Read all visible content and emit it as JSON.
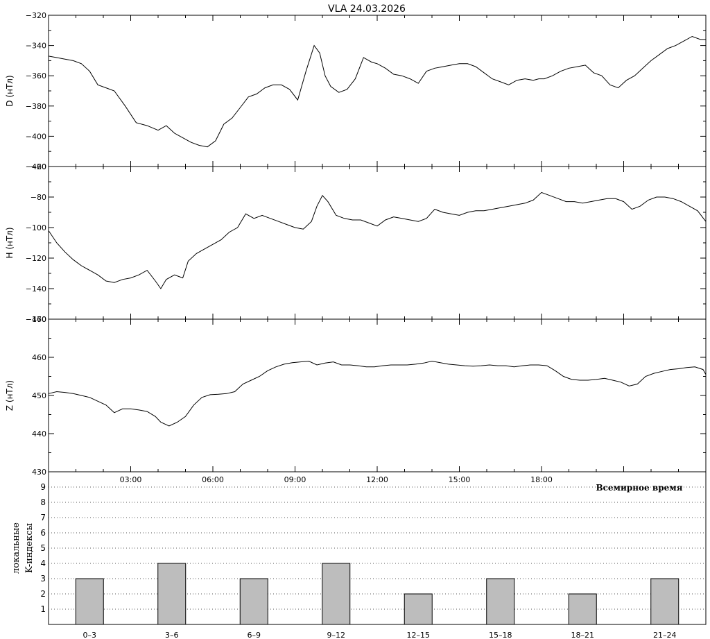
{
  "title": "VLA   24.03.2026",
  "x_tick_labels": [
    "03:00",
    "06:00",
    "09:00",
    "12:00",
    "15:00",
    "18:00"
  ],
  "x_axis_label": "Всемирное время",
  "k_side_label_1": "локальные",
  "k_side_label_2": "K-индексы",
  "colors": {
    "line": "#000000",
    "bar_fill": "#bdbdbd",
    "bar_stroke": "#000000",
    "frame": "#000000"
  },
  "chart_data": [
    {
      "type": "line",
      "ylabel": "D (нТл)",
      "ylim": [
        -420,
        -320
      ],
      "yticks": [
        -420,
        -400,
        -380,
        -360,
        -340,
        -320
      ],
      "xlim_hours": [
        0,
        24
      ],
      "x_hours": [
        0,
        0.3,
        0.6,
        0.9,
        1.2,
        1.5,
        1.8,
        2.1,
        2.4,
        2.8,
        3.2,
        3.6,
        4.0,
        4.3,
        4.6,
        4.9,
        5.2,
        5.5,
        5.8,
        6.1,
        6.4,
        6.7,
        7.0,
        7.3,
        7.6,
        7.9,
        8.2,
        8.5,
        8.8,
        9.1,
        9.4,
        9.7,
        9.9,
        10.1,
        10.3,
        10.6,
        10.9,
        11.2,
        11.5,
        11.8,
        12.0,
        12.3,
        12.6,
        12.9,
        13.2,
        13.5,
        13.8,
        14.1,
        14.4,
        14.7,
        15.0,
        15.3,
        15.6,
        15.9,
        16.2,
        16.5,
        16.8,
        17.1,
        17.4,
        17.7,
        17.9,
        18.1,
        18.4,
        18.7,
        19.0,
        19.3,
        19.6,
        19.9,
        20.2,
        20.5,
        20.8,
        21.1,
        21.4,
        21.7,
        22.0,
        22.3,
        22.6,
        22.9,
        23.2,
        23.5,
        23.8,
        24.0
      ],
      "values": [
        -347,
        -348,
        -349,
        -350,
        -352,
        -357,
        -366,
        -368,
        -370,
        -380,
        -391,
        -393,
        -396,
        -393,
        -398,
        -401,
        -404,
        -406,
        -407,
        -403,
        -392,
        -388,
        -381,
        -374,
        -372,
        -368,
        -366,
        -366,
        -369,
        -376,
        -357,
        -340,
        -345,
        -360,
        -367,
        -371,
        -369,
        -362,
        -348,
        -351,
        -352,
        -355,
        -359,
        -360,
        -362,
        -365,
        -357,
        -355,
        -354,
        -353,
        -352,
        -352,
        -354,
        -358,
        -362,
        -364,
        -366,
        -363,
        -362,
        -363,
        -362,
        -362,
        -360,
        -357,
        -355,
        -354,
        -353,
        -358,
        -360,
        -366,
        -368,
        -363,
        -360,
        -355,
        -350,
        -346,
        -342,
        -340,
        -337,
        -334,
        -336,
        -336
      ]
    },
    {
      "type": "line",
      "ylabel": "H (нТл)",
      "ylim": [
        -160,
        -60
      ],
      "yticks": [
        -160,
        -140,
        -120,
        -100,
        -80,
        -60
      ],
      "xlim_hours": [
        0,
        24
      ],
      "x_hours": [
        0,
        0.3,
        0.6,
        0.9,
        1.2,
        1.5,
        1.8,
        2.1,
        2.4,
        2.7,
        3.0,
        3.3,
        3.6,
        3.9,
        4.1,
        4.3,
        4.6,
        4.9,
        5.1,
        5.4,
        5.7,
        6.0,
        6.3,
        6.6,
        6.9,
        7.2,
        7.5,
        7.8,
        8.1,
        8.4,
        8.7,
        9.0,
        9.3,
        9.6,
        9.8,
        10.0,
        10.2,
        10.5,
        10.8,
        11.1,
        11.4,
        11.7,
        12.0,
        12.3,
        12.6,
        12.9,
        13.2,
        13.5,
        13.8,
        14.1,
        14.4,
        14.7,
        15.0,
        15.3,
        15.6,
        15.9,
        16.2,
        16.5,
        16.8,
        17.1,
        17.4,
        17.7,
        18.0,
        18.3,
        18.6,
        18.9,
        19.2,
        19.5,
        19.8,
        20.1,
        20.4,
        20.7,
        21.0,
        21.3,
        21.6,
        21.9,
        22.2,
        22.5,
        22.8,
        23.1,
        23.4,
        23.7,
        24.0
      ],
      "values": [
        -102,
        -110,
        -116,
        -121,
        -125,
        -128,
        -131,
        -135,
        -136,
        -134,
        -133,
        -131,
        -128,
        -135,
        -140,
        -134,
        -131,
        -133,
        -122,
        -117,
        -114,
        -111,
        -108,
        -103,
        -100,
        -91,
        -94,
        -92,
        -94,
        -96,
        -98,
        -100,
        -101,
        -96,
        -86,
        -79,
        -83,
        -92,
        -94,
        -95,
        -95,
        -97,
        -99,
        -95,
        -93,
        -94,
        -95,
        -96,
        -94,
        -88,
        -90,
        -91,
        -92,
        -90,
        -89,
        -89,
        -88,
        -87,
        -86,
        -85,
        -84,
        -82,
        -77,
        -79,
        -81,
        -83,
        -83,
        -84,
        -83,
        -82,
        -81,
        -81,
        -83,
        -88,
        -86,
        -82,
        -80,
        -80,
        -81,
        -83,
        -86,
        -89,
        -96
      ]
    },
    {
      "type": "line",
      "ylabel": "Z (нТл)",
      "ylim": [
        430,
        470
      ],
      "yticks": [
        430,
        440,
        450,
        460,
        470
      ],
      "xlim_hours": [
        0,
        24
      ],
      "x_hours": [
        0,
        0.3,
        0.6,
        0.9,
        1.2,
        1.5,
        1.8,
        2.1,
        2.4,
        2.7,
        3.0,
        3.3,
        3.6,
        3.9,
        4.1,
        4.4,
        4.7,
        5.0,
        5.3,
        5.6,
        5.9,
        6.2,
        6.5,
        6.8,
        7.1,
        7.4,
        7.7,
        8.0,
        8.3,
        8.6,
        8.9,
        9.2,
        9.5,
        9.8,
        10.1,
        10.4,
        10.7,
        11.0,
        11.3,
        11.6,
        11.9,
        12.2,
        12.5,
        12.8,
        13.1,
        13.4,
        13.7,
        14.0,
        14.3,
        14.6,
        14.9,
        15.2,
        15.5,
        15.8,
        16.1,
        16.4,
        16.7,
        17.0,
        17.3,
        17.6,
        17.9,
        18.2,
        18.5,
        18.8,
        19.1,
        19.4,
        19.7,
        20.0,
        20.3,
        20.6,
        20.9,
        21.2,
        21.5,
        21.8,
        22.1,
        22.4,
        22.7,
        23.0,
        23.3,
        23.6,
        23.9,
        24.0
      ],
      "values": [
        450.5,
        451,
        450.8,
        450.5,
        450,
        449.5,
        448.5,
        447.5,
        445.5,
        446.5,
        446.5,
        446.2,
        445.8,
        444.5,
        443,
        442,
        443,
        444.5,
        447.5,
        449.5,
        450.2,
        450.3,
        450.5,
        451,
        453,
        454,
        455,
        456.5,
        457.5,
        458.2,
        458.6,
        458.8,
        459,
        458,
        458.5,
        458.8,
        458,
        458,
        457.8,
        457.5,
        457.5,
        457.8,
        458,
        458,
        458,
        458.2,
        458.5,
        459,
        458.6,
        458.2,
        458,
        457.8,
        457.7,
        457.8,
        458,
        457.8,
        457.8,
        457.5,
        457.8,
        458,
        458,
        457.8,
        456.5,
        455,
        454.2,
        454,
        454,
        454.2,
        454.5,
        454,
        453.5,
        452.5,
        453,
        455,
        455.8,
        456.3,
        456.8,
        457,
        457.3,
        457.5,
        456.8,
        455.5
      ]
    },
    {
      "type": "bar",
      "ylabel": "K",
      "ylim": [
        0,
        10
      ],
      "yticks": [
        1,
        2,
        3,
        4,
        5,
        6,
        7,
        8,
        9
      ],
      "grid": true,
      "categories": [
        "0–3",
        "3–6",
        "6–9",
        "9–12",
        "12–15",
        "15–18",
        "18–21",
        "21–24"
      ],
      "values": [
        3,
        4,
        3,
        4,
        2,
        3,
        2,
        3
      ]
    }
  ]
}
